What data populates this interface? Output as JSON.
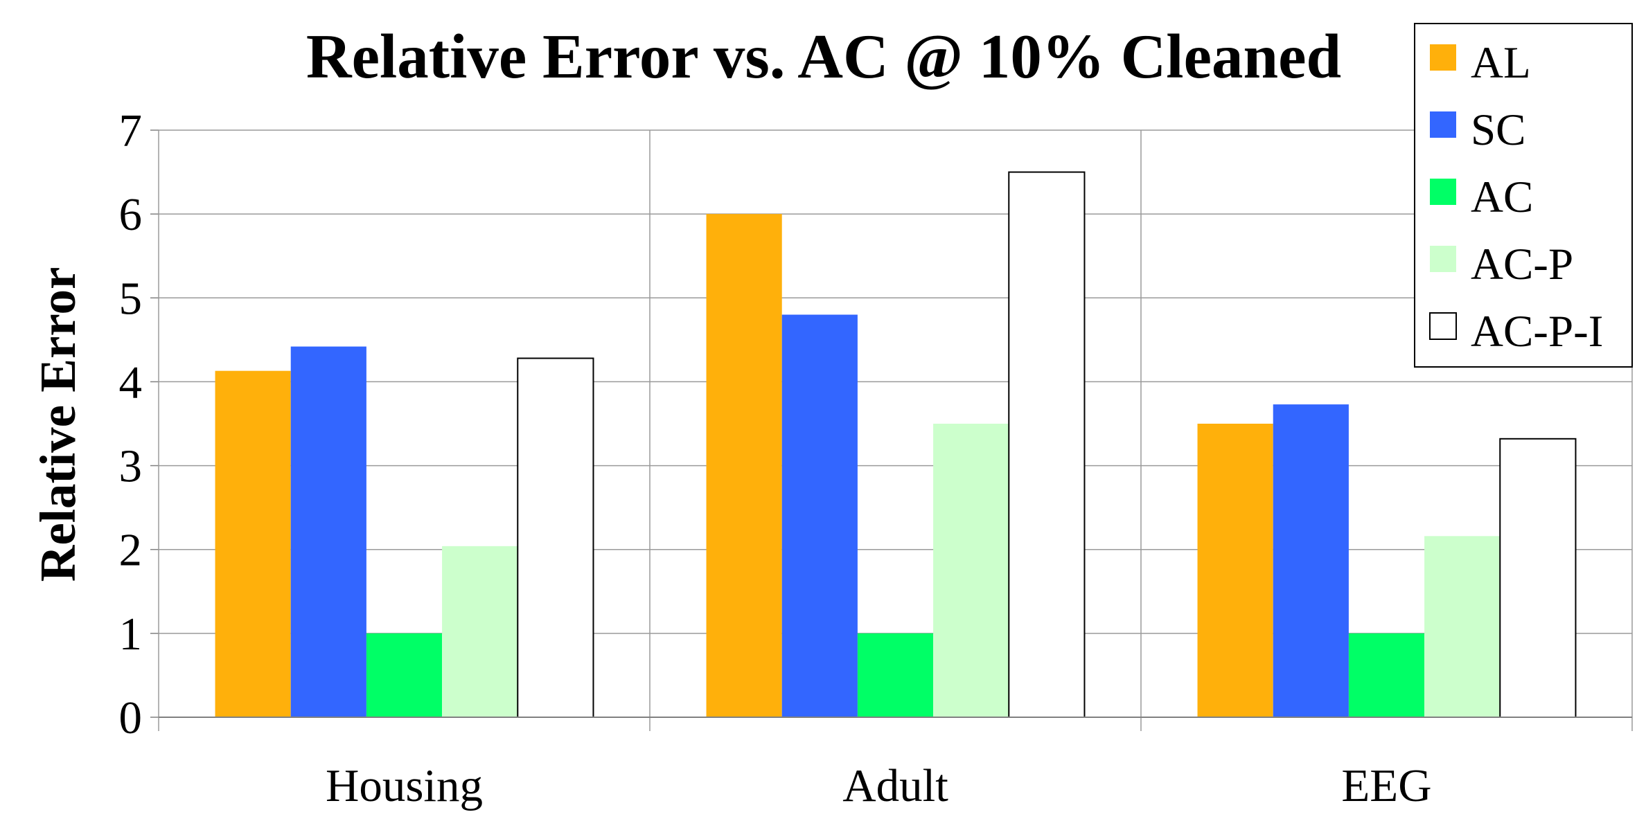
{
  "chart_data": {
    "type": "bar",
    "title": "Relative Error vs. AC @ 10% Cleaned",
    "xlabel": "",
    "ylabel": "Relative Error",
    "ylim": [
      0,
      7
    ],
    "yticks": [
      "0",
      "1",
      "2",
      "3",
      "4",
      "5",
      "6",
      "7"
    ],
    "grid": true,
    "legend_position": "top-right",
    "categories": [
      "Housing",
      "Adult",
      "EEG"
    ],
    "series": [
      {
        "name": "AL",
        "color": "#FFB00B",
        "outline": false,
        "values": [
          4.13,
          6.0,
          3.5
        ]
      },
      {
        "name": "SC",
        "color": "#3366FF",
        "outline": false,
        "values": [
          4.42,
          4.8,
          3.73
        ]
      },
      {
        "name": "AC",
        "color": "#00FF66",
        "outline": false,
        "values": [
          1.0,
          1.0,
          1.0
        ]
      },
      {
        "name": "AC-P",
        "color": "#CCFFCC",
        "outline": false,
        "values": [
          2.04,
          3.5,
          2.16
        ]
      },
      {
        "name": "AC-P-I",
        "color": "#FFFFFF",
        "outline": true,
        "values": [
          4.28,
          6.5,
          3.32
        ]
      }
    ]
  }
}
